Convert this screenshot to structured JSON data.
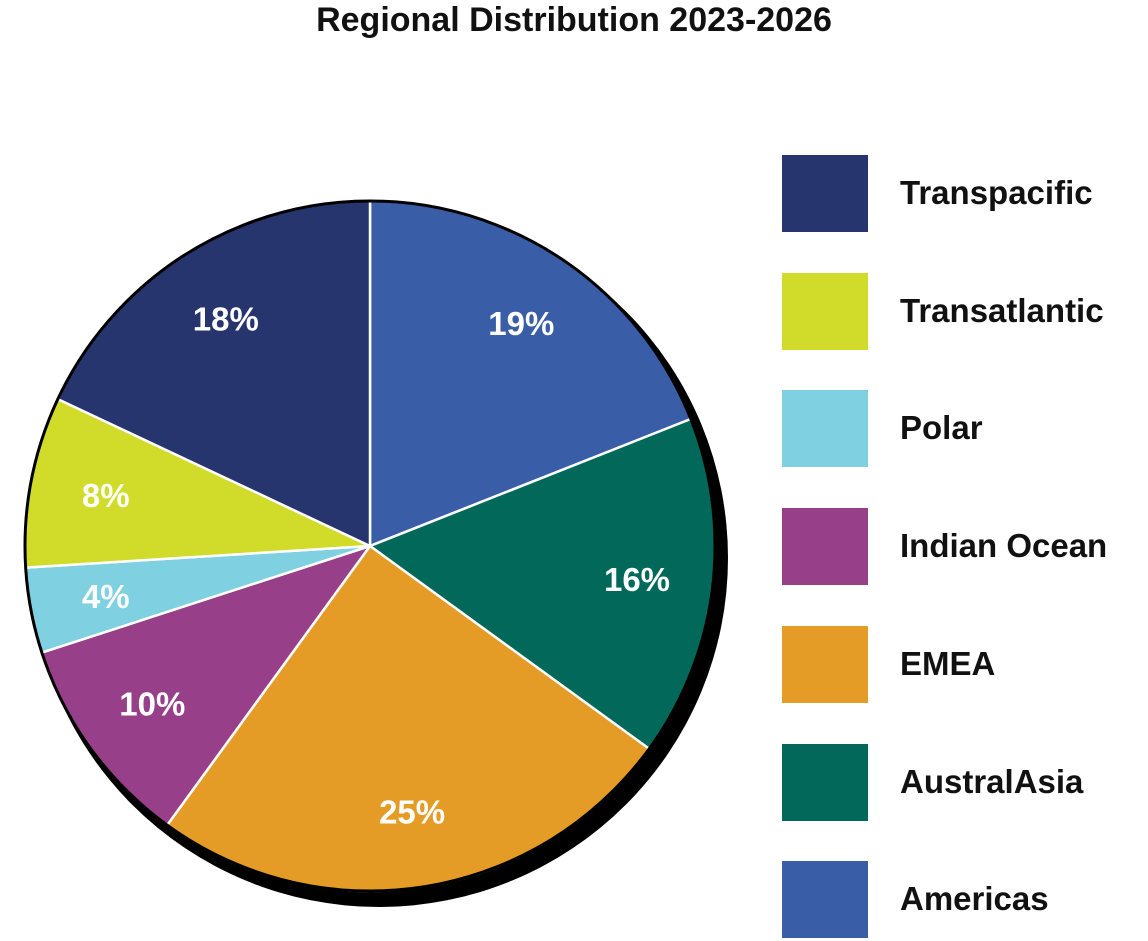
{
  "chart_data": {
    "type": "pie",
    "title": "Regional Distribution 2023-2026",
    "slices": [
      {
        "label": "Americas",
        "value": 19,
        "display": "19%",
        "color": "#3A5DA8"
      },
      {
        "label": "AustralAsia",
        "value": 16,
        "display": "16%",
        "color": "#02695A"
      },
      {
        "label": "EMEA",
        "value": 25,
        "display": "25%",
        "color": "#E49C27"
      },
      {
        "label": "Indian Ocean",
        "value": 10,
        "display": "10%",
        "color": "#973F88"
      },
      {
        "label": "Polar",
        "value": 4,
        "display": "4%",
        "color": "#7FD0E0"
      },
      {
        "label": "Transatlantic",
        "value": 8,
        "display": "8%",
        "color": "#D0DC29"
      },
      {
        "label": "Transpacific",
        "value": 18,
        "display": "18%",
        "color": "#26356E"
      }
    ],
    "legend": [
      {
        "label": "Transpacific",
        "color": "#26356E"
      },
      {
        "label": "Transatlantic",
        "color": "#D0DC29"
      },
      {
        "label": "Polar",
        "color": "#7FD0E0"
      },
      {
        "label": "Indian Ocean",
        "color": "#973F88"
      },
      {
        "label": "EMEA",
        "color": "#E49C27"
      },
      {
        "label": "AustralAsia",
        "color": "#02695A"
      },
      {
        "label": "Americas",
        "color": "#3A5DA8"
      }
    ],
    "legend_position": "right",
    "start_angle": "12 o'clock",
    "direction": "clockwise"
  }
}
